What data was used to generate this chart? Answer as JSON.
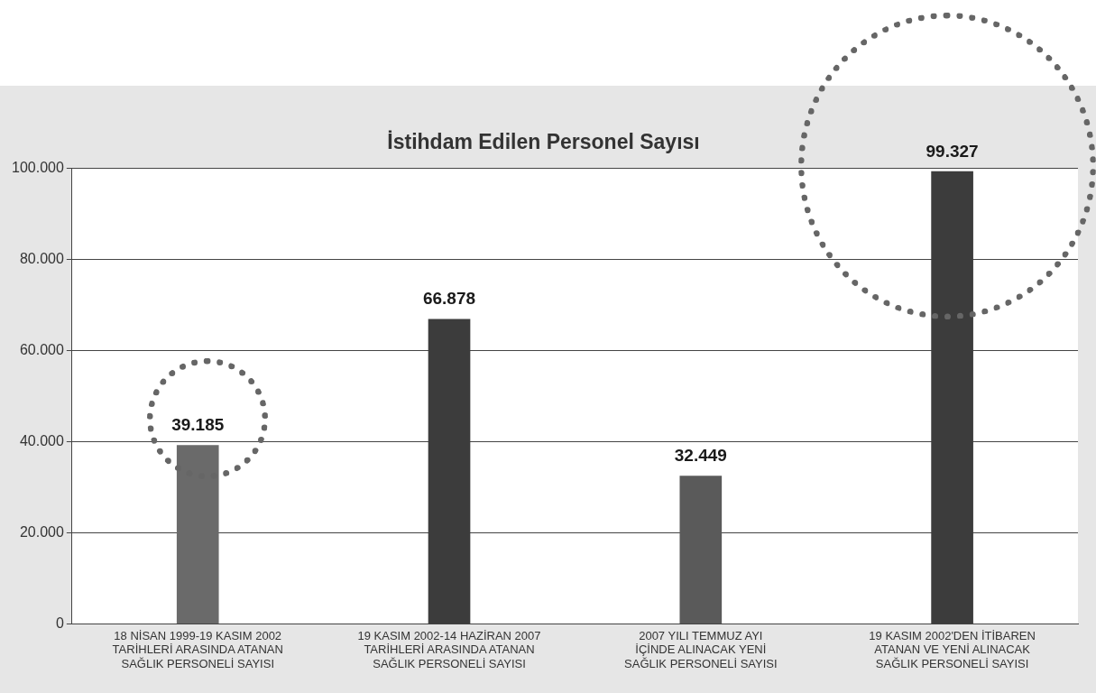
{
  "chart_data": {
    "type": "bar",
    "title": "İstihdam Edilen Personel Sayısı",
    "categories": [
      "18 NİSAN 1999-19 KASIM 2002\nTARİHLERİ ARASINDA ATANAN\nSAĞLIK PERSONELİ SAYISI",
      "19 KASIM 2002-14 HAZİRAN 2007\nTARİHLERİ ARASINDA ATANAN\nSAĞLIK PERSONELİ SAYISI",
      "2007 YILI TEMMUZ AYI\nİÇİNDE ALINACAK YENİ\nSAĞLIK PERSONELİ SAYISI",
      "19 KASIM 2002'DEN İTİBAREN\nATANAN VE YENİ ALINACAK\nSAĞLIK PERSONELİ SAYISI"
    ],
    "values": [
      39185,
      66878,
      32449,
      99327
    ],
    "colors": [
      "#6a6a6a",
      "#3c3c3c",
      "#5a5a5a",
      "#3c3c3c"
    ],
    "value_labels": [
      "39.185",
      "66.878",
      "32.449",
      "99.327"
    ],
    "ylim": [
      0,
      100000
    ],
    "yticks": [
      0,
      {
        "value": 20000,
        "label": "20.000"
      },
      {
        "value": 40000,
        "label": "40.000"
      },
      {
        "value": 60000,
        "label": "60.000"
      },
      {
        "value": 80000,
        "label": "80.000"
      },
      {
        "value": 100000,
        "label": "100.000"
      }
    ],
    "grid": "y",
    "legend": false
  }
}
